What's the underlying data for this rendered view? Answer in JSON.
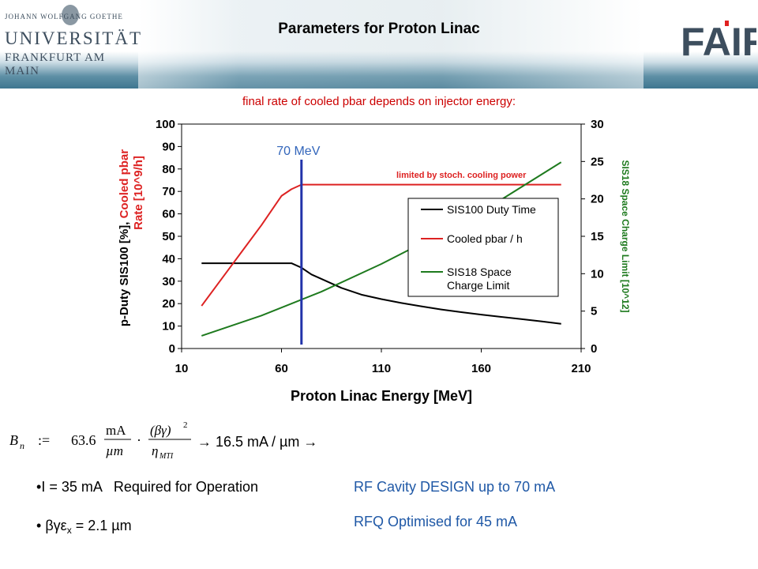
{
  "header": {
    "title": "Parameters for Proton Linac",
    "uni_small": "JOHANN WOLFGANG GOETHE",
    "uni_big": "UNIVERSITÄT",
    "uni_city": "FRANKFURT AM MAIN",
    "fair_logo": "FAIR"
  },
  "subtitle": "final rate of cooled pbar depends on injector energy:",
  "chart_data": {
    "type": "line",
    "xlabel": "Proton Linac Energy [MeV]",
    "ylabel_left_black": "p-Duty SIS100 [%],",
    "ylabel_left_red": "Cooled pbar Rate [10^9/h]",
    "ylabel_right": "SIS18 Space Charge Limit [10^12]",
    "xlim": [
      10,
      210
    ],
    "ylim_left": [
      0,
      100
    ],
    "ylim_right": [
      0,
      30
    ],
    "x_ticks": [
      10,
      60,
      110,
      160,
      210
    ],
    "y_ticks_left": [
      0,
      10,
      20,
      30,
      40,
      50,
      60,
      70,
      80,
      90,
      100
    ],
    "y_ticks_right": [
      0,
      5,
      10,
      15,
      20,
      25,
      30
    ],
    "series": [
      {
        "name": "SIS100 Duty Time",
        "color": "#000000",
        "axis": "left",
        "x": [
          20,
          30,
          40,
          50,
          60,
          65,
          70,
          75,
          80,
          90,
          100,
          110,
          120,
          130,
          140,
          150,
          160,
          170,
          180,
          190,
          200
        ],
        "y": [
          38,
          38,
          38,
          38,
          38,
          38,
          36,
          33,
          31,
          27,
          24,
          22,
          20.3,
          18.8,
          17.4,
          16.2,
          15.1,
          14.1,
          13.1,
          12.1,
          11
        ]
      },
      {
        "name": "Cooled pbar / h",
        "color": "#dd2222",
        "axis": "left",
        "x": [
          20,
          30,
          40,
          50,
          60,
          65,
          70,
          80,
          100,
          120,
          140,
          160,
          180,
          200
        ],
        "y": [
          19,
          31,
          43,
          55,
          68,
          71,
          73,
          73,
          73,
          73,
          73,
          73,
          73,
          73
        ]
      },
      {
        "name": "SIS18 Space Charge Limit",
        "color": "#1e7a1e",
        "axis": "right",
        "x": [
          20,
          50,
          80,
          110,
          140,
          170,
          200
        ],
        "y": [
          1.7,
          4.4,
          7.6,
          11.3,
          15.4,
          19.9,
          24.9
        ]
      }
    ],
    "annotations": {
      "vline_label": "70 MeV",
      "vline_x": 70,
      "limit_text": "limited  by stoch. cooling power"
    },
    "legend_placement": "center-right"
  },
  "formula": {
    "lhs": "B",
    "lhs_sub": "n",
    "assign": ":=",
    "coef": "63.6",
    "unit_num": "mA",
    "unit_den": "µm",
    "dot": "·",
    "frac_num": "(βγ)",
    "frac_num_exp": "2",
    "frac_den": "η",
    "frac_den_sub": "MTI",
    "result": "→ 16.5 mA / µm →"
  },
  "bullets": {
    "b1_text": "I = 35 mA",
    "b1_req": "Required for Operation",
    "b2_prefix": "βγε",
    "b2_sub": "x",
    "b2_suffix": " = 2.1 µm"
  },
  "notes": {
    "rf": "RF Cavity DESIGN up to 70 mA",
    "rfq": "RFQ Optimised for 45 mA"
  },
  "colors": {
    "accent_red": "#cc0000",
    "accent_blue": "#1f58a6",
    "vline_blue": "#2233aa",
    "green": "#1e7a1e"
  }
}
